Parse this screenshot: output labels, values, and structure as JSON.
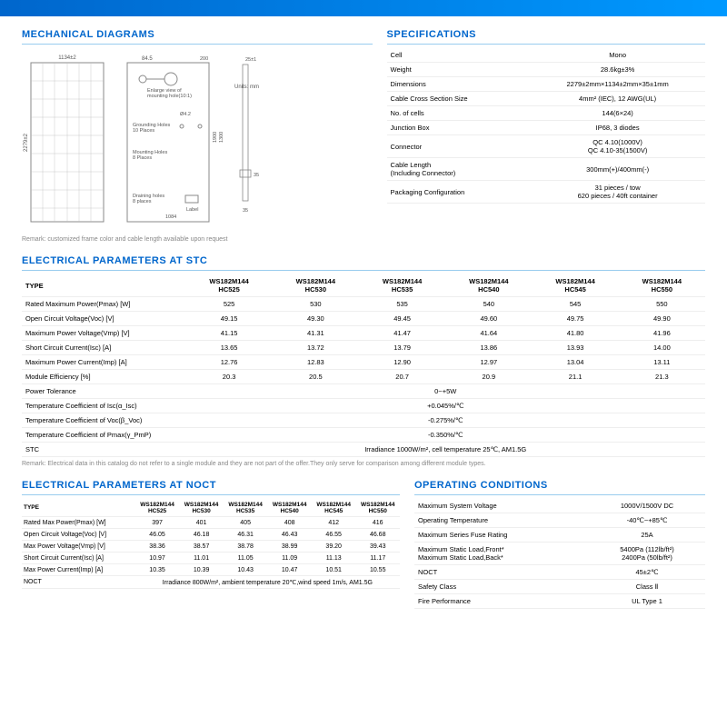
{
  "sections": {
    "mech": "MECHANICAL DIAGRAMS",
    "spec": "SPECIFICATIONS",
    "stc": "ELECTRICAL PARAMETERS AT STC",
    "noct": "ELECTRICAL PARAMETERS AT NOCT",
    "op": "OPERATING CONDITIONS"
  },
  "diagram": {
    "width_label": "1134±2",
    "height_label": "2279±2",
    "units": "Units:   mm",
    "enlarge": "Enlarge view of\nmounting hole(10:1)",
    "grounding": "Grounding Holes\n10 Places",
    "mounting": "Mounting Holes\n8 Places",
    "draining": "Draining holes\n8 places",
    "dim_84_5": "84.5",
    "dim_200": "200",
    "dim_phi4_2": "Ø4.2",
    "dim_1084": "1084",
    "dim_1300": "1300",
    "dim_1900": "1900",
    "dim_35": "35",
    "dim_25": "25±1",
    "label_cb": "Label"
  },
  "remark_mech": "Remark: customized frame color and cable length available upon request",
  "specs": [
    [
      "Cell",
      "Mono"
    ],
    [
      "Weight",
      "28.6kg±3%"
    ],
    [
      "Dimensions",
      "2279±2mm×1134±2mm×35±1mm"
    ],
    [
      "Cable Cross Section Size",
      "4mm² (IEC), 12 AWG(UL)"
    ],
    [
      "No. of cells",
      "144(6×24)"
    ],
    [
      "Junction Box",
      "IP68,  3 diodes"
    ],
    [
      "Connector",
      "QC 4.10(1000V)\nQC 4.10-35(1500V)"
    ],
    [
      "Cable Length\n(Including Connector)",
      "300mm(+)/400mm(-)"
    ],
    [
      "Packaging Configuration",
      "31 pieces / tow\n620 pieces / 40ft container"
    ]
  ],
  "stc": {
    "type_label": "TYPE",
    "model_top": "WS182M144",
    "models": [
      "HC525",
      "HC530",
      "HC535",
      "HC540",
      "HC545",
      "HC550"
    ],
    "rows": [
      [
        "Rated Maximum Power(Pmax) [W]",
        "525",
        "530",
        "535",
        "540",
        "545",
        "550"
      ],
      [
        "Open Circuit Voltage(Voc) [V]",
        "49.15",
        "49.30",
        "49.45",
        "49.60",
        "49.75",
        "49.90"
      ],
      [
        "Maximum Power Voltage(Vmp) [V]",
        "41.15",
        "41.31",
        "41.47",
        "41.64",
        "41.80",
        "41.96"
      ],
      [
        "Short Circuit Current(Isc) [A]",
        "13.65",
        "13.72",
        "13.79",
        "13.86",
        "13.93",
        "14.00"
      ],
      [
        "Maximum Power Current(Imp) [A]",
        "12.76",
        "12.83",
        "12.90",
        "12.97",
        "13.04",
        "13.11"
      ],
      [
        "Module Efficiency [%]",
        "20.3",
        "20.5",
        "20.7",
        "20.9",
        "21.1",
        "21.3"
      ]
    ],
    "merged": [
      [
        "Power Tolerance",
        "0~+5W"
      ],
      [
        "Temperature Coefficient of Isc(α_Isc)",
        "+0.045%/℃"
      ],
      [
        "Temperature Coefficient of Voc(β_Voc)",
        "-0.275%/℃"
      ],
      [
        "Temperature Coefficient of Pmax(γ_PmP)",
        "-0.350%/℃"
      ],
      [
        "STC",
        "Irradiance 1000W/m²,  cell temperature 25℃, AM1.5G"
      ]
    ]
  },
  "remark_stc": "Remark: Electrical data in this catalog do not refer to a single module and they are not part of the offer.They only serve for comparison among different module types.",
  "noct": {
    "type_label": "TYPE",
    "model_top": "WS182M144",
    "models": [
      "HC525",
      "HC530",
      "HC535",
      "HC540",
      "HC545",
      "HC550"
    ],
    "rows": [
      [
        "Rated Max Power(Pmax) [W]",
        "397",
        "401",
        "405",
        "408",
        "412",
        "416"
      ],
      [
        "Open Circuit Voltage(Voc) [V]",
        "46.05",
        "46.18",
        "46.31",
        "46.43",
        "46.55",
        "46.68"
      ],
      [
        "Max Power Voltage(Vmp) [V]",
        "38.36",
        "38.57",
        "38.78",
        "38.99",
        "39.20",
        "39.43"
      ],
      [
        "Short Circuit Current(Isc) [A]",
        "10.97",
        "11.01",
        "11.05",
        "11.09",
        "11.13",
        "11.17"
      ],
      [
        "Max Power Current(Imp) [A]",
        "10.35",
        "10.39",
        "10.43",
        "10.47",
        "10.51",
        "10.55"
      ]
    ],
    "footer": [
      "NOCT",
      "Irradiance 800W/m², ambient temperature 20℃,wind speed 1m/s, AM1.5G"
    ]
  },
  "op": [
    [
      "Maximum System Voltage",
      "1000V/1500V DC"
    ],
    [
      "Operating Temperature",
      "-40℃~+85℃"
    ],
    [
      "Maximum Series Fuse Rating",
      "25A"
    ],
    [
      "Maximum Static Load,Front*\nMaximum Static Load,Back*",
      "5400Pa (112lb/ft²)\n2400Pa (50lb/ft²)"
    ],
    [
      "NOCT",
      "45±2℃"
    ],
    [
      "Safety Class",
      "Class Ⅱ"
    ],
    [
      "Fire Performance",
      "UL Type 1"
    ]
  ]
}
